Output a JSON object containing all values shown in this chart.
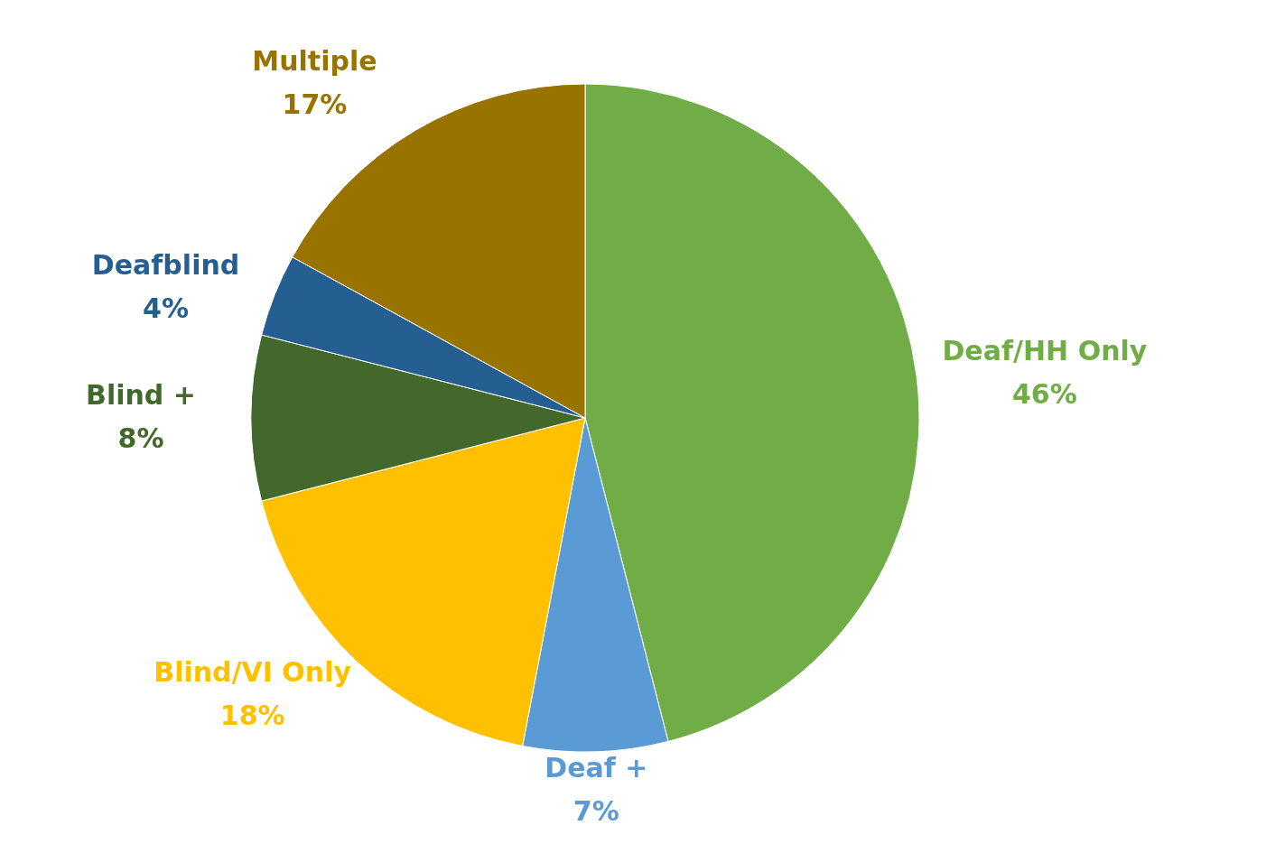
{
  "chart_data": {
    "type": "pie",
    "categories": [
      "Deaf/HH Only",
      "Deaf +",
      "Blind/VI Only",
      "Blind +",
      "Deafblind",
      "Multiple"
    ],
    "values": [
      46,
      7,
      18,
      8,
      4,
      17
    ],
    "colors": [
      "#70ad47",
      "#5b9bd5",
      "#ffc000",
      "#43682b",
      "#255e91",
      "#997300"
    ],
    "value_labels": [
      "46%",
      "7%",
      "18%",
      "8%",
      "4%",
      "17%"
    ]
  }
}
